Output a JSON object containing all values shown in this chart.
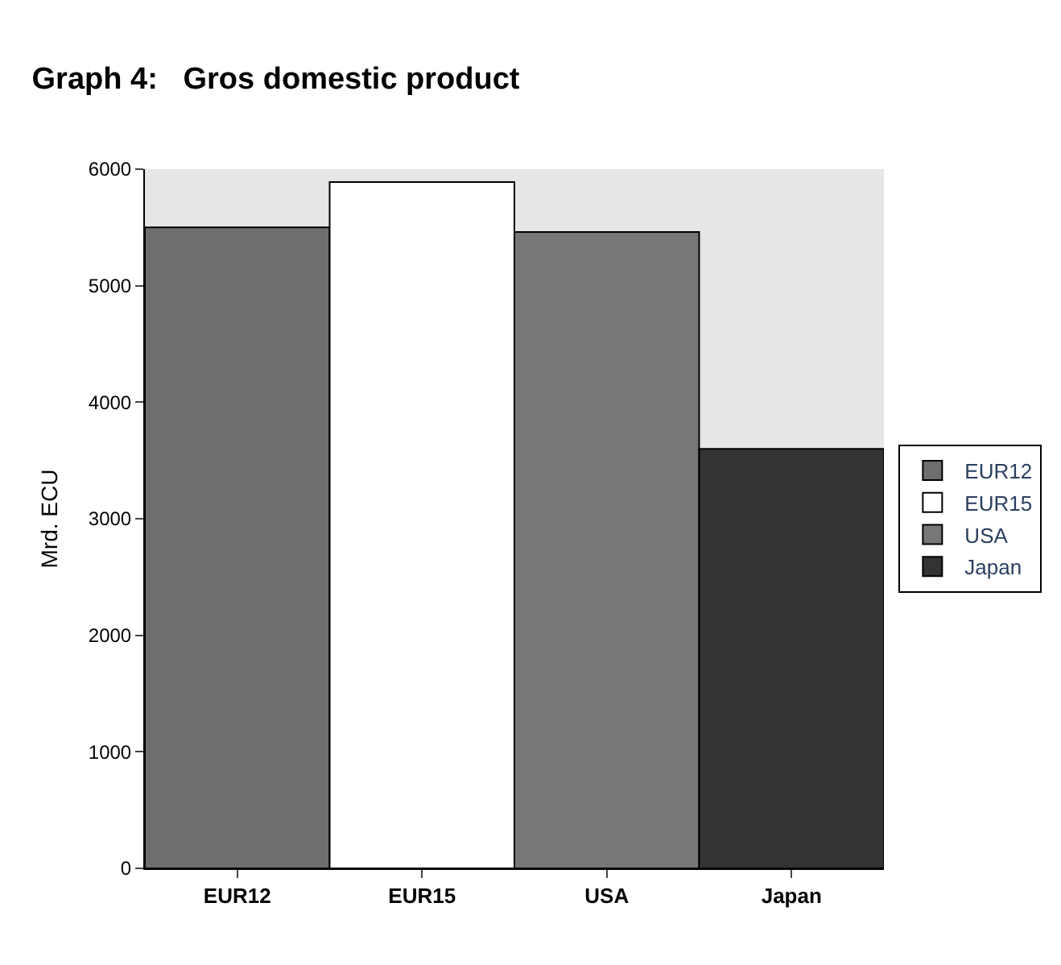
{
  "chart_data": {
    "type": "bar",
    "title": "Graph 4:   Gros domestic product",
    "ylabel": "Mrd. ECU",
    "categories": [
      "EUR12",
      "EUR15",
      "USA",
      "Japan"
    ],
    "series": [
      {
        "name": "EUR12",
        "color": "#6e6e6e",
        "values": [
          5500,
          null,
          null,
          null
        ]
      },
      {
        "name": "EUR15",
        "color": "#ffffff",
        "values": [
          null,
          5890,
          null,
          null
        ]
      },
      {
        "name": "USA",
        "color": "#777777",
        "values": [
          null,
          null,
          5460,
          null
        ]
      },
      {
        "name": "Japan",
        "color": "#333333",
        "values": [
          null,
          null,
          null,
          3600
        ]
      }
    ],
    "ylim": [
      0,
      6000
    ],
    "yticks": [
      0,
      1000,
      2000,
      3000,
      4000,
      5000,
      6000
    ],
    "grid": false,
    "legend": "right"
  }
}
